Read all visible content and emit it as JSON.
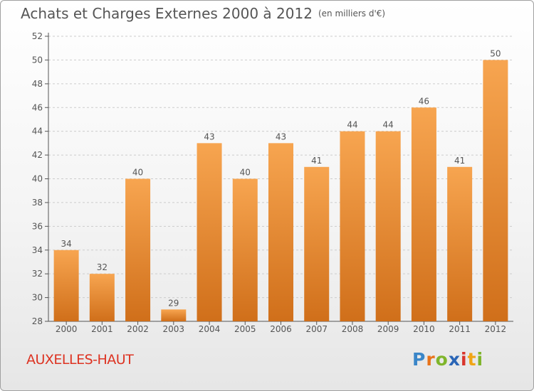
{
  "header": {
    "title": "Achats et Charges Externes 2000 à 2012",
    "unit": "(en milliers d'€)"
  },
  "footer": {
    "commune": "AUXELLES-HAUT",
    "logo": "Proxiti"
  },
  "colors": {
    "bar_top": "#f7a550",
    "bar_bottom": "#d06f1a",
    "axis": "#555555",
    "grid": "#cccccc",
    "commune_text": "#dd3322"
  },
  "chart_data": {
    "type": "bar",
    "title": "Achats et Charges Externes 2000 à 2012",
    "subtitle": "(en milliers d'€)",
    "xlabel": "",
    "ylabel": "",
    "categories": [
      "2000",
      "2001",
      "2002",
      "2003",
      "2004",
      "2005",
      "2006",
      "2007",
      "2008",
      "2009",
      "2010",
      "2011",
      "2012"
    ],
    "values": [
      34,
      32,
      40,
      29,
      43,
      40,
      43,
      41,
      44,
      44,
      46,
      41,
      50
    ],
    "ylim": [
      28,
      52
    ],
    "yticks": [
      28,
      30,
      32,
      34,
      36,
      38,
      40,
      42,
      44,
      46,
      48,
      50,
      52
    ],
    "grid": true,
    "legend": "none"
  }
}
